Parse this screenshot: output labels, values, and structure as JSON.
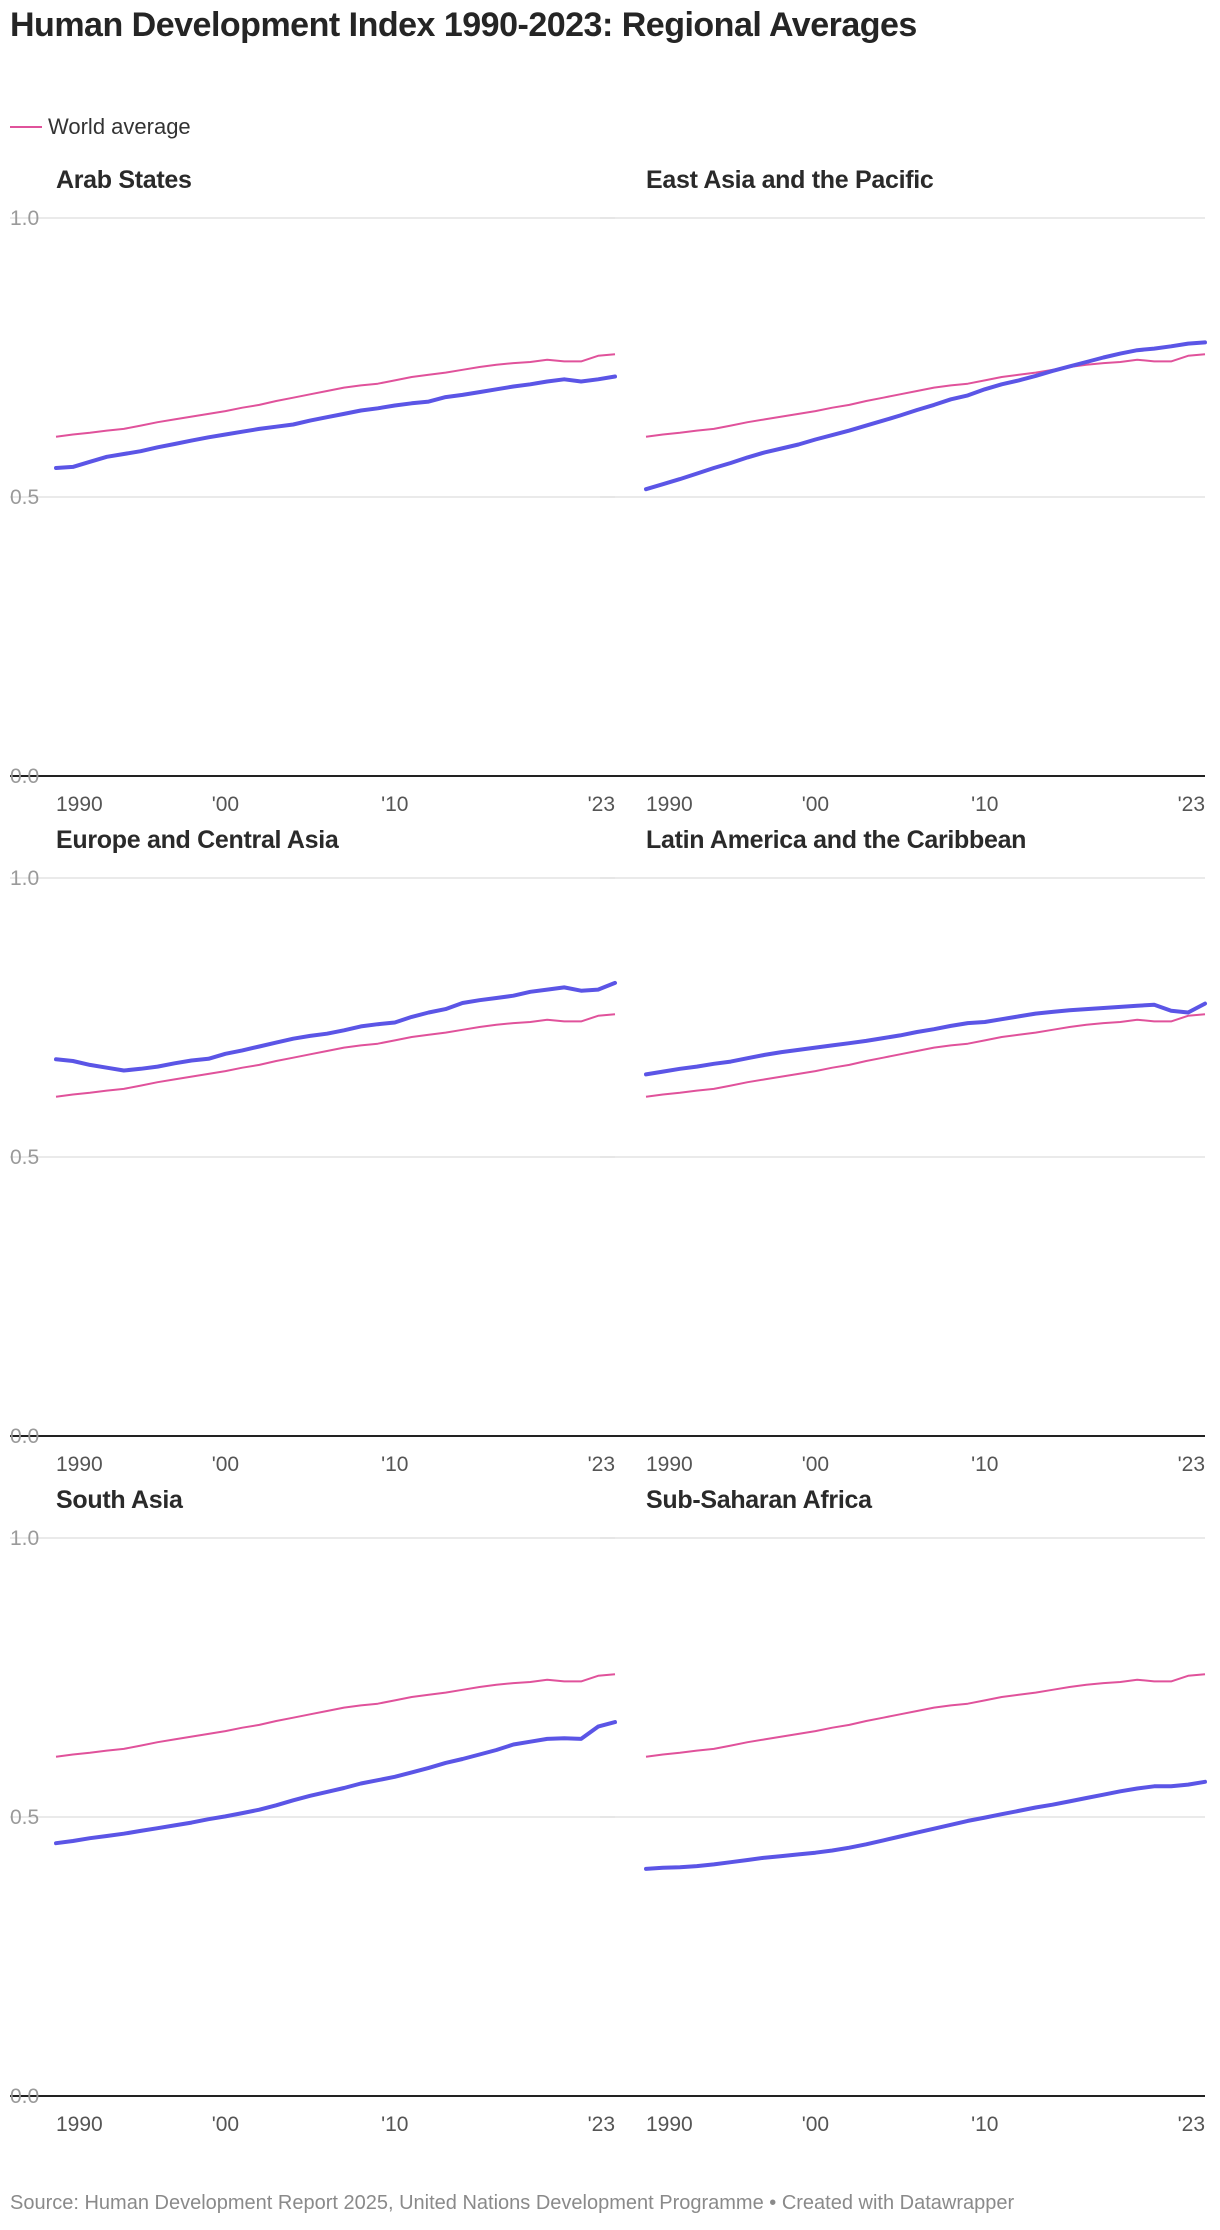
{
  "title": "Human Development Index 1990-2023: Regional Averages",
  "legend": {
    "label": "World average",
    "color": "#e0529b"
  },
  "source": "Source: Human Development Report 2025, United Nations Development Programme • Created with Datawrapper",
  "colors": {
    "region": "#5b55e6",
    "world": "#e0529b",
    "grid": "#e3e3e3",
    "axis": "#222222"
  },
  "chart_data": {
    "type": "line",
    "x": [
      1990,
      1991,
      1992,
      1993,
      1994,
      1995,
      1996,
      1997,
      1998,
      1999,
      2000,
      2001,
      2002,
      2003,
      2004,
      2005,
      2006,
      2007,
      2008,
      2009,
      2010,
      2011,
      2012,
      2013,
      2014,
      2015,
      2016,
      2017,
      2018,
      2019,
      2020,
      2021,
      2022,
      2023
    ],
    "xticks": [
      {
        "value": 1990,
        "label": "1990"
      },
      {
        "value": 2000,
        "label": "'00"
      },
      {
        "value": 2010,
        "label": "'10"
      },
      {
        "value": 2023,
        "label": "'23"
      }
    ],
    "yticks": [
      {
        "value": 0,
        "label": "0.0"
      },
      {
        "value": 0.5,
        "label": "0.5"
      },
      {
        "value": 1,
        "label": "1.0"
      }
    ],
    "ylim": [
      0,
      1
    ],
    "grid": true,
    "world": [
      0.608,
      0.612,
      0.615,
      0.619,
      0.622,
      0.628,
      0.634,
      0.639,
      0.644,
      0.649,
      0.654,
      0.66,
      0.665,
      0.672,
      0.678,
      0.684,
      0.69,
      0.696,
      0.7,
      0.703,
      0.709,
      0.715,
      0.719,
      0.723,
      0.728,
      0.733,
      0.737,
      0.74,
      0.742,
      0.746,
      0.743,
      0.743,
      0.753,
      0.756
    ],
    "panels": [
      {
        "name": "Arab States",
        "values": [
          0.552,
          0.554,
          0.563,
          0.572,
          0.577,
          0.582,
          0.589,
          0.595,
          0.601,
          0.607,
          0.612,
          0.617,
          0.622,
          0.626,
          0.63,
          0.637,
          0.643,
          0.649,
          0.655,
          0.659,
          0.664,
          0.668,
          0.671,
          0.679,
          0.683,
          0.688,
          0.693,
          0.698,
          0.702,
          0.707,
          0.711,
          0.707,
          0.711,
          0.716
        ]
      },
      {
        "name": "East Asia and the Pacific",
        "values": [
          0.514,
          0.523,
          0.532,
          0.542,
          0.552,
          0.561,
          0.571,
          0.58,
          0.587,
          0.594,
          0.603,
          0.611,
          0.619,
          0.628,
          0.637,
          0.646,
          0.656,
          0.665,
          0.675,
          0.682,
          0.693,
          0.702,
          0.709,
          0.717,
          0.726,
          0.734,
          0.742,
          0.75,
          0.757,
          0.763,
          0.766,
          0.77,
          0.775,
          0.777
        ]
      },
      {
        "name": "Europe and Central Asia",
        "values": [
          0.675,
          0.672,
          0.665,
          0.66,
          0.655,
          0.658,
          0.662,
          0.668,
          0.673,
          0.676,
          0.685,
          0.691,
          0.698,
          0.705,
          0.712,
          0.717,
          0.721,
          0.727,
          0.734,
          0.738,
          0.741,
          0.751,
          0.759,
          0.765,
          0.776,
          0.781,
          0.785,
          0.789,
          0.796,
          0.8,
          0.804,
          0.798,
          0.8,
          0.812
        ]
      },
      {
        "name": "Latin America and the Caribbean",
        "values": [
          0.648,
          0.653,
          0.658,
          0.662,
          0.667,
          0.671,
          0.677,
          0.683,
          0.688,
          0.692,
          0.696,
          0.7,
          0.704,
          0.708,
          0.713,
          0.718,
          0.724,
          0.729,
          0.735,
          0.74,
          0.742,
          0.747,
          0.752,
          0.757,
          0.76,
          0.763,
          0.765,
          0.767,
          0.769,
          0.771,
          0.773,
          0.762,
          0.759,
          0.775
        ]
      },
      {
        "name": "South Asia",
        "values": [
          0.453,
          0.457,
          0.462,
          0.466,
          0.47,
          0.475,
          0.48,
          0.485,
          0.49,
          0.496,
          0.501,
          0.507,
          0.513,
          0.521,
          0.53,
          0.538,
          0.545,
          0.552,
          0.56,
          0.566,
          0.572,
          0.58,
          0.588,
          0.597,
          0.604,
          0.612,
          0.62,
          0.63,
          0.635,
          0.64,
          0.641,
          0.64,
          0.662,
          0.67
        ]
      },
      {
        "name": "Sub-Saharan Africa",
        "values": [
          0.407,
          0.409,
          0.41,
          0.412,
          0.415,
          0.419,
          0.423,
          0.427,
          0.43,
          0.433,
          0.436,
          0.44,
          0.445,
          0.451,
          0.458,
          0.465,
          0.472,
          0.479,
          0.486,
          0.493,
          0.499,
          0.505,
          0.511,
          0.517,
          0.522,
          0.528,
          0.534,
          0.54,
          0.546,
          0.551,
          0.555,
          0.555,
          0.558,
          0.563
        ]
      }
    ]
  }
}
